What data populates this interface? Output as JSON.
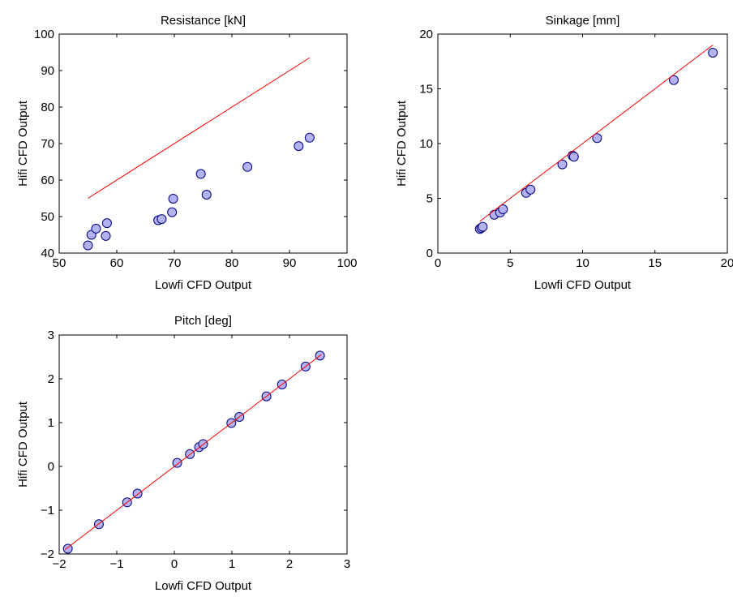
{
  "chart_data": [
    {
      "type": "scatter",
      "title": "Resistance [kN]",
      "xlabel": "Lowfi CFD Output",
      "ylabel": "Hifi CFD Output",
      "xlim": [
        50,
        100
      ],
      "ylim": [
        40,
        100
      ],
      "xticks": [
        "50",
        "60",
        "70",
        "80",
        "90",
        "100"
      ],
      "yticks": [
        "40",
        "50",
        "60",
        "70",
        "80",
        "90",
        "100"
      ],
      "grid": false,
      "series": [
        {
          "kind": "points",
          "color": "#b3b3f2",
          "edge_color": "#000080",
          "x": [
            55.0,
            55.6,
            56.4,
            58.1,
            58.3,
            67.2,
            67.8,
            69.6,
            69.8,
            74.6,
            75.6,
            82.7,
            91.6,
            93.5
          ],
          "y": [
            42.1,
            45.0,
            46.7,
            44.7,
            48.2,
            49.0,
            49.3,
            51.2,
            54.9,
            61.7,
            56.0,
            63.6,
            69.3,
            71.6
          ]
        },
        {
          "kind": "line",
          "color": "#ff0000",
          "x": [
            55.0,
            93.5
          ],
          "y": [
            55.0,
            93.5
          ]
        }
      ]
    },
    {
      "type": "scatter",
      "title": "Sinkage [mm]",
      "xlabel": "Lowfi CFD Output",
      "ylabel": "Hifi CFD Output",
      "xlim": [
        0,
        20
      ],
      "ylim": [
        0,
        20
      ],
      "xticks": [
        "0",
        "5",
        "10",
        "15",
        "20"
      ],
      "yticks": [
        "0",
        "5",
        "10",
        "15",
        "20"
      ],
      "grid": false,
      "series": [
        {
          "kind": "points",
          "color": "#b3b3f2",
          "edge_color": "#000080",
          "x": [
            2.9,
            3.0,
            3.1,
            3.9,
            4.3,
            4.5,
            6.1,
            6.4,
            8.6,
            9.3,
            9.4,
            11.0,
            16.3,
            19.0
          ],
          "y": [
            2.2,
            2.3,
            2.4,
            3.5,
            3.7,
            4.0,
            5.5,
            5.8,
            8.1,
            8.9,
            8.8,
            10.5,
            15.8,
            18.3
          ]
        },
        {
          "kind": "line",
          "color": "#ff0000",
          "x": [
            2.9,
            19.0
          ],
          "y": [
            2.9,
            19.0
          ]
        }
      ]
    },
    {
      "type": "scatter",
      "title": "Pitch [deg]",
      "xlabel": "Lowfi CFD Output",
      "ylabel": "Hifi CFD Output",
      "xlim": [
        -2,
        3
      ],
      "ylim": [
        -2,
        3
      ],
      "xticks": [
        "−2",
        "−1",
        "0",
        "1",
        "2",
        "3"
      ],
      "yticks": [
        "−2",
        "−1",
        "0",
        "1",
        "2",
        "3"
      ],
      "grid": false,
      "series": [
        {
          "kind": "points",
          "color": "#b3b3f2",
          "edge_color": "#000080",
          "x": [
            -1.85,
            -1.31,
            -0.82,
            -0.64,
            0.05,
            0.27,
            0.43,
            0.5,
            0.99,
            1.13,
            1.6,
            1.87,
            2.28,
            2.53
          ],
          "y": [
            -1.88,
            -1.32,
            -0.82,
            -0.62,
            0.08,
            0.28,
            0.44,
            0.51,
            0.99,
            1.13,
            1.6,
            1.87,
            2.28,
            2.53
          ]
        },
        {
          "kind": "line",
          "color": "#ff0000",
          "x": [
            -1.9,
            2.55
          ],
          "y": [
            -1.9,
            2.55
          ]
        }
      ]
    }
  ]
}
